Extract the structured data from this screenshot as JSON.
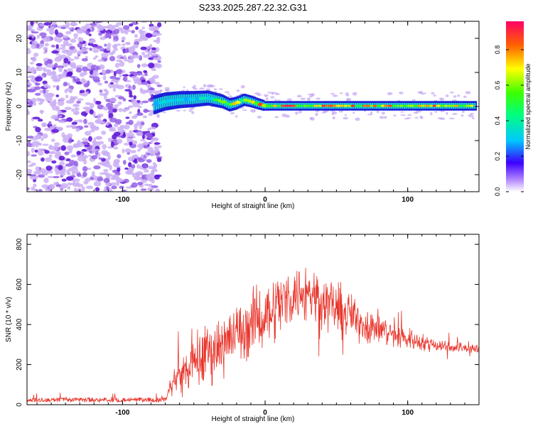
{
  "title": "S233.2025.287.22.32.G31",
  "colors": {
    "snr_line": "#e8342a",
    "spectrogram_noise": "#6a0fd0",
    "axis": "#000000"
  },
  "chart_data": [
    {
      "type": "heatmap",
      "name": "spectrogram",
      "xlabel": "Height of straight line (km)",
      "ylabel": "Frequency (Hz)",
      "xlim": [
        -167,
        150
      ],
      "ylim": [
        -25,
        25
      ],
      "x_ticks": [
        -100,
        0,
        100
      ],
      "x_tick_labels": [
        "-100",
        "0",
        "100"
      ],
      "y_ticks": [
        -20,
        -10,
        0,
        10,
        20
      ],
      "y_tick_labels": [
        "-20",
        "-10",
        "0",
        "10",
        "20"
      ],
      "colorbar": {
        "label": "Normalized spectral amplitude",
        "range": [
          0,
          0.96
        ],
        "ticks": [
          0.0,
          0.2,
          0.4,
          0.6,
          0.8
        ],
        "tick_labels": [
          "0.0",
          "0.2",
          "0.4",
          "0.6",
          "0.8"
        ]
      },
      "noise_region_x": [
        -167,
        -76
      ],
      "signal_track": {
        "x": [
          -78,
          -70,
          -60,
          -50,
          -40,
          -35,
          -30,
          -25,
          -20,
          -15,
          -10,
          -5,
          0,
          20,
          50,
          80,
          100,
          120,
          148
        ],
        "frequency_hz": [
          0.5,
          1.5,
          2.0,
          2.2,
          2.5,
          2.0,
          1.5,
          0.5,
          1.0,
          2.0,
          1.5,
          0.8,
          0.2,
          0.2,
          0.2,
          0.2,
          0.2,
          0.2,
          0.2
        ],
        "amplitude": [
          0.4,
          0.5,
          0.55,
          0.55,
          0.5,
          0.6,
          0.7,
          0.85,
          0.8,
          0.7,
          0.8,
          0.85,
          0.9,
          0.92,
          0.92,
          0.9,
          0.9,
          0.92,
          0.9
        ]
      }
    },
    {
      "type": "line",
      "name": "snr",
      "xlabel": "Height of straight line (km)",
      "ylabel": "SNR (10 * v/v)",
      "xlim": [
        -167,
        150
      ],
      "ylim": [
        0,
        850
      ],
      "x_ticks": [
        -100,
        0,
        100
      ],
      "x_tick_labels": [
        "-100",
        "0",
        "100"
      ],
      "y_ticks": [
        0,
        200,
        400,
        600,
        800
      ],
      "y_tick_labels": [
        "0",
        "200",
        "400",
        "600",
        "800"
      ],
      "envelope": {
        "x": [
          -167,
          -140,
          -100,
          -70,
          -65,
          -60,
          -50,
          -40,
          -30,
          -20,
          -10,
          0,
          10,
          20,
          30,
          40,
          50,
          60,
          70,
          80,
          90,
          100,
          110,
          120,
          130,
          140,
          150
        ],
        "mean": [
          22,
          25,
          25,
          25,
          110,
          150,
          200,
          260,
          300,
          350,
          400,
          450,
          500,
          550,
          560,
          530,
          480,
          440,
          400,
          380,
          350,
          330,
          310,
          300,
          290,
          285,
          275
        ],
        "spread": [
          10,
          12,
          12,
          12,
          80,
          120,
          180,
          220,
          200,
          220,
          230,
          230,
          240,
          200,
          230,
          210,
          180,
          160,
          140,
          120,
          100,
          80,
          60,
          50,
          45,
          40,
          35
        ]
      }
    }
  ]
}
